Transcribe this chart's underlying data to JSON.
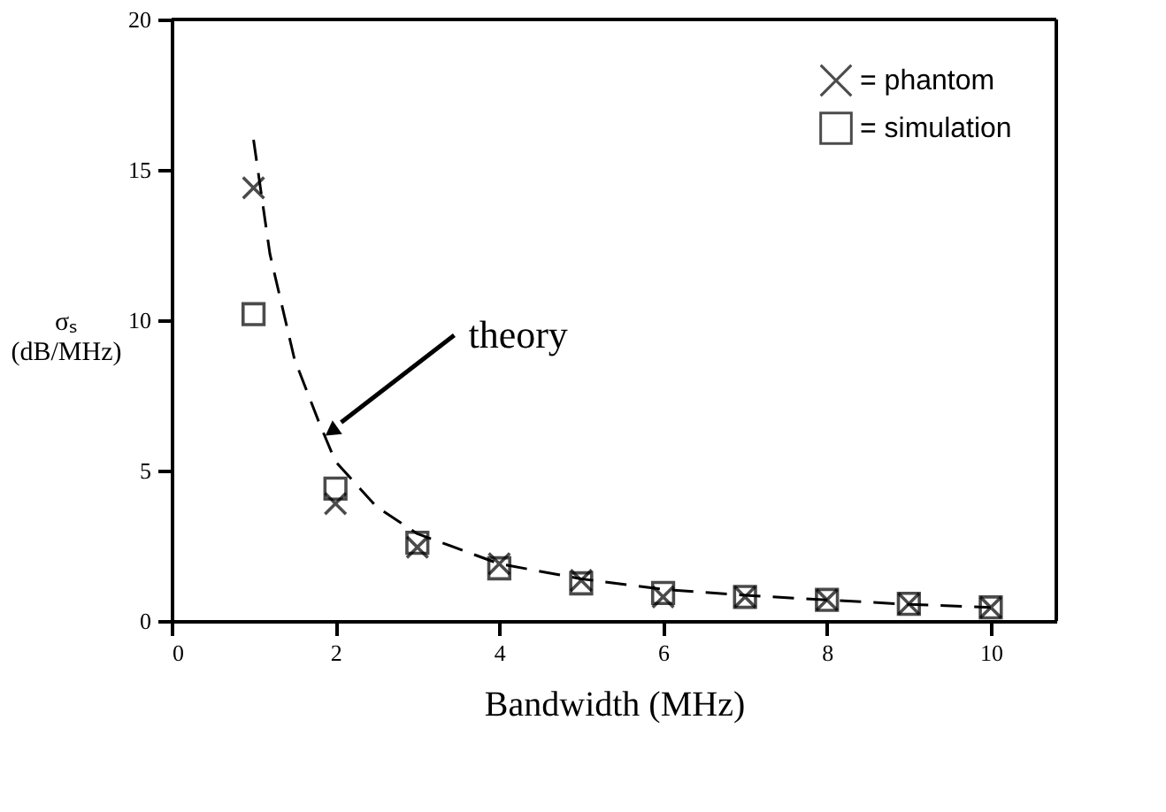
{
  "chart_data": {
    "type": "scatter",
    "xlabel": "Bandwidth (MHz)",
    "ylabel": "σₛ (dB/MHz)",
    "xlim": [
      0,
      10.8
    ],
    "xticks": [
      0,
      2,
      4,
      6,
      8,
      10
    ],
    "ylim": [
      0,
      20
    ],
    "yticks": [
      0,
      5,
      10,
      15,
      20
    ],
    "grid": false,
    "legend": "top right",
    "series": [
      {
        "name": "= phantom",
        "marker": "cross",
        "color": "#000000",
        "x": [
          1,
          2,
          3,
          4,
          5,
          6,
          7,
          8,
          9,
          10
        ],
        "values": [
          14.4,
          3.9,
          2.45,
          1.9,
          1.35,
          0.8,
          0.8,
          0.7,
          0.57,
          0.45
        ]
      },
      {
        "name": "= simulation",
        "marker": "square",
        "color": "#000000",
        "x": [
          1,
          2,
          3,
          4,
          5,
          6,
          7,
          8,
          9,
          10
        ],
        "values": [
          10.2,
          4.4,
          2.6,
          1.75,
          1.25,
          0.93,
          0.8,
          0.7,
          0.57,
          0.45
        ]
      },
      {
        "type": "line",
        "line_style": "dashed",
        "color": "#000000",
        "x": [
          1,
          1.2,
          1.5,
          1.8,
          2,
          2.5,
          3,
          4,
          5,
          6,
          7,
          8,
          9,
          10
        ],
        "values": [
          16,
          12.2,
          8.7,
          6.6,
          5.3,
          3.8,
          2.9,
          1.9,
          1.4,
          1.05,
          0.85,
          0.7,
          0.55,
          0.45
        ]
      }
    ],
    "annotations": [
      {
        "text": "theory",
        "x": 1.95,
        "y": 6.3
      }
    ]
  }
}
